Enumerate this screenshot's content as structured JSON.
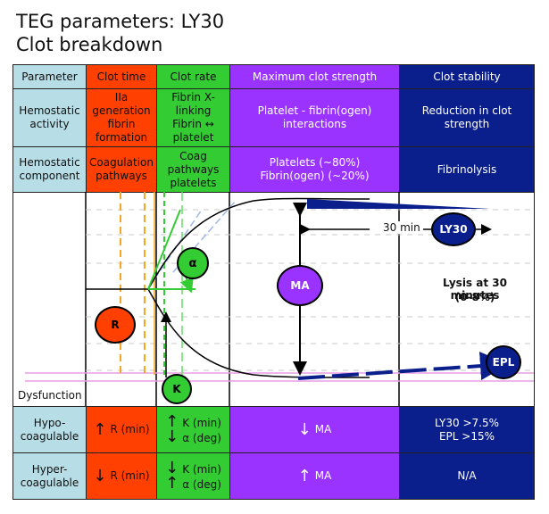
{
  "title": {
    "line1": "TEG parameters: LY30",
    "line2": "Clot breakdown"
  },
  "header": {
    "parameter": "Parameter",
    "clot_time": "Clot time",
    "clot_rate": "Clot rate",
    "max_strength": "Maximum clot strength",
    "stability": "Clot stability"
  },
  "hemostatic_activity": {
    "label": "Hemostatic activity",
    "clot_time": "IIa generation fibrin formation",
    "clot_rate": "Fibrin X-linking Fibrin ↔ platelet",
    "max_strength": "Platelet - fibrin(ogen) interactions",
    "stability": "Reduction in clot strength"
  },
  "hemostatic_component": {
    "label": "Hemostatic component",
    "clot_time": "Coagulation pathways",
    "clot_rate": "Coag pathways platelets",
    "max_strength_1": "Platelets (~80%)",
    "max_strength_2": "Fibrin(ogen) (~20%)",
    "stability": "Fibrinolysis"
  },
  "diagram": {
    "dysfunction_label": "Dysfunction",
    "r_label": "R",
    "k_label": "K",
    "alpha_label": "α",
    "ma_label": "MA",
    "ly30_label": "LY30",
    "epl_label": "EPL",
    "thirty_min": "30 min",
    "lysis_line1": "Lysis at 30 minutes",
    "lysis_line2": "(0-8%)"
  },
  "hypo": {
    "label": "Hypo-coagulable",
    "r": "R (min)",
    "k": "K (min)",
    "alpha": "α (deg)",
    "ma": "MA",
    "ly30": "LY30 >7.5%",
    "epl": "EPL >15%"
  },
  "hyper": {
    "label": "Hyper-coagulable",
    "r": "R (min)",
    "k": "K (min)",
    "alpha": "α (deg)",
    "ma": "MA",
    "stability": "N/A"
  },
  "colors": {
    "param": "#b7dde6",
    "red": "#ff4000",
    "green": "#33cc33",
    "purple": "#9a33ff",
    "navy": "#0a1f8c"
  },
  "icons": {
    "up": "arrow-up-icon",
    "down": "arrow-down-icon"
  }
}
